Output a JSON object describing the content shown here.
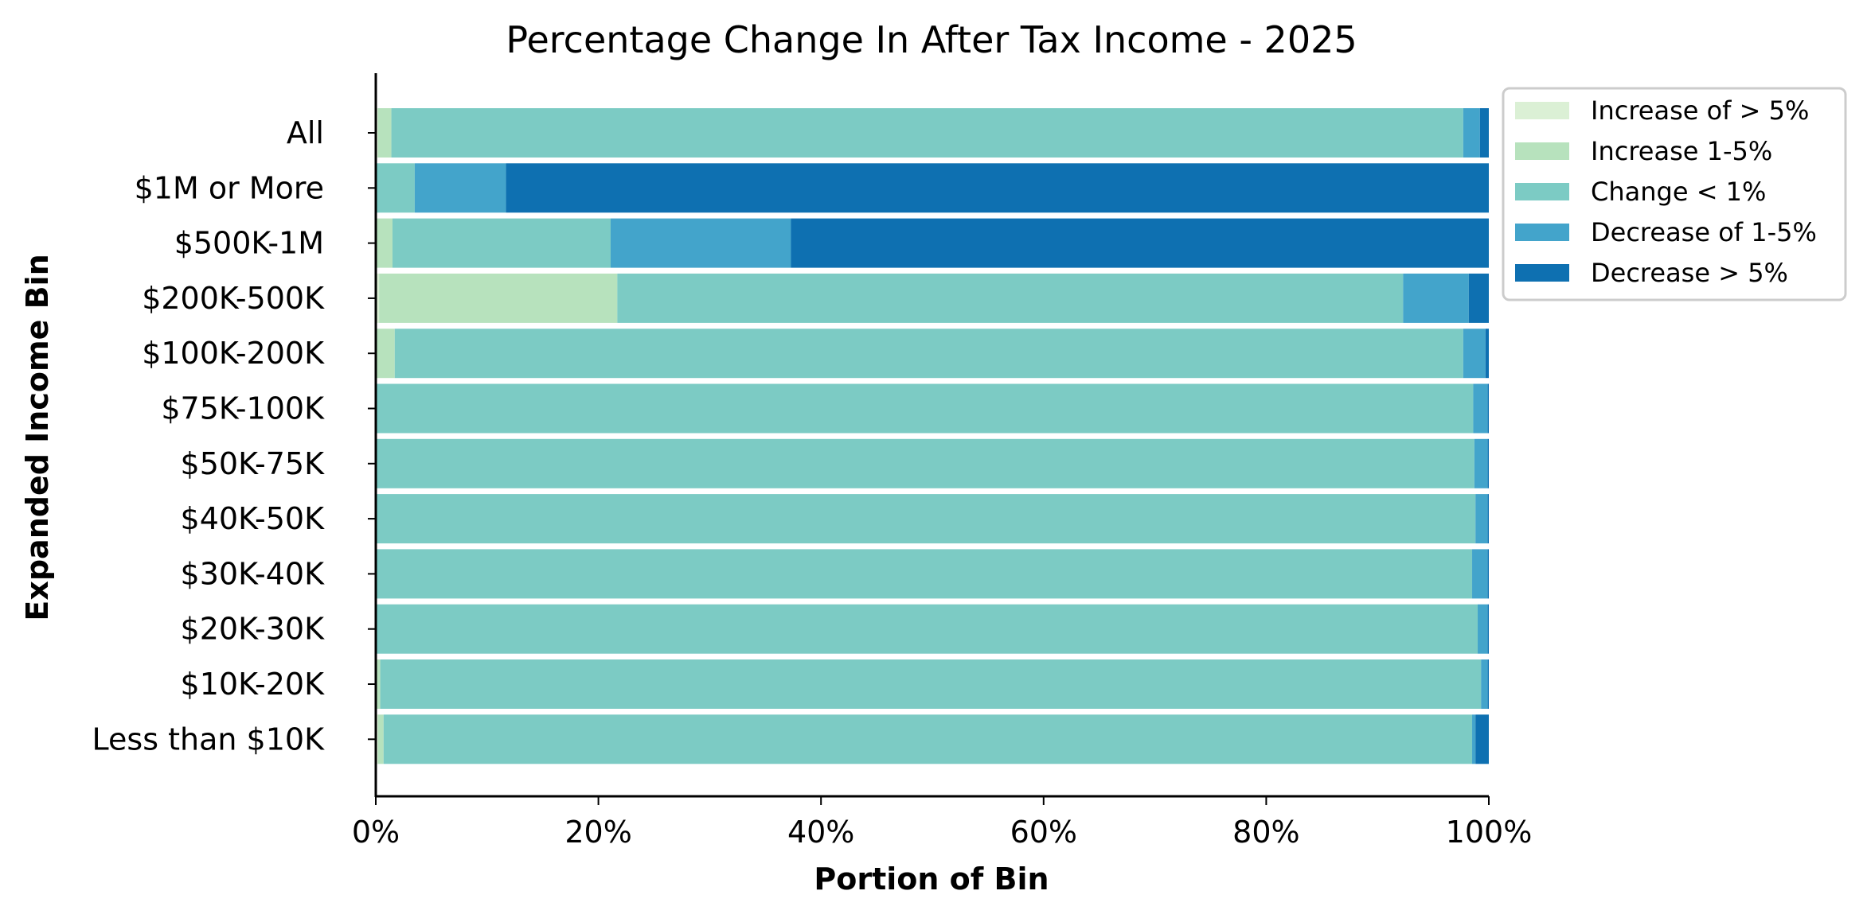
{
  "chart_data": {
    "type": "bar",
    "orientation": "horizontal",
    "stacked": true,
    "title": "Percentage Change In After Tax Income - 2025",
    "xlabel": "Portion of Bin",
    "ylabel": "Expanded Income Bin",
    "xlim": [
      0,
      100
    ],
    "xticks": [
      "0%",
      "20%",
      "40%",
      "60%",
      "80%",
      "100%"
    ],
    "xtick_values": [
      0,
      20,
      40,
      60,
      80,
      100
    ],
    "grid": false,
    "legend_position": "outside top-right",
    "categories": [
      "All",
      "$1M or More",
      "$500K-1M",
      "$200K-500K",
      "$100K-200K",
      "$75K-100K",
      "$50K-75K",
      "$40K-50K",
      "$30K-40K",
      "$20K-30K",
      "$10K-20K",
      "Less than $10K"
    ],
    "series": [
      {
        "name": "Increase of > 5%",
        "color": "#dbf0d5",
        "values": [
          0.2,
          0.0,
          0.0,
          0.3,
          0.1,
          0.0,
          0.0,
          0.0,
          0.0,
          0.0,
          0.1,
          0.2
        ]
      },
      {
        "name": "Increase 1-5%",
        "color": "#b7e2bd",
        "values": [
          1.2,
          0.0,
          1.5,
          21.4,
          1.6,
          0.0,
          0.0,
          0.0,
          0.0,
          0.0,
          0.3,
          0.5
        ]
      },
      {
        "name": "Change < 1%",
        "color": "#7ccbc4",
        "values": [
          96.3,
          3.5,
          19.6,
          70.6,
          96.0,
          98.6,
          98.7,
          98.8,
          98.5,
          99.0,
          98.9,
          97.8
        ]
      },
      {
        "name": "Decrease of 1-5%",
        "color": "#43a4cb",
        "values": [
          1.5,
          8.2,
          16.2,
          5.9,
          2.0,
          1.3,
          1.2,
          1.1,
          1.4,
          0.9,
          0.6,
          0.3
        ]
      },
      {
        "name": "Decrease > 5%",
        "color": "#0e70b1",
        "values": [
          0.8,
          88.3,
          62.7,
          1.8,
          0.3,
          0.1,
          0.1,
          0.1,
          0.1,
          0.1,
          0.1,
          1.2
        ]
      }
    ]
  }
}
